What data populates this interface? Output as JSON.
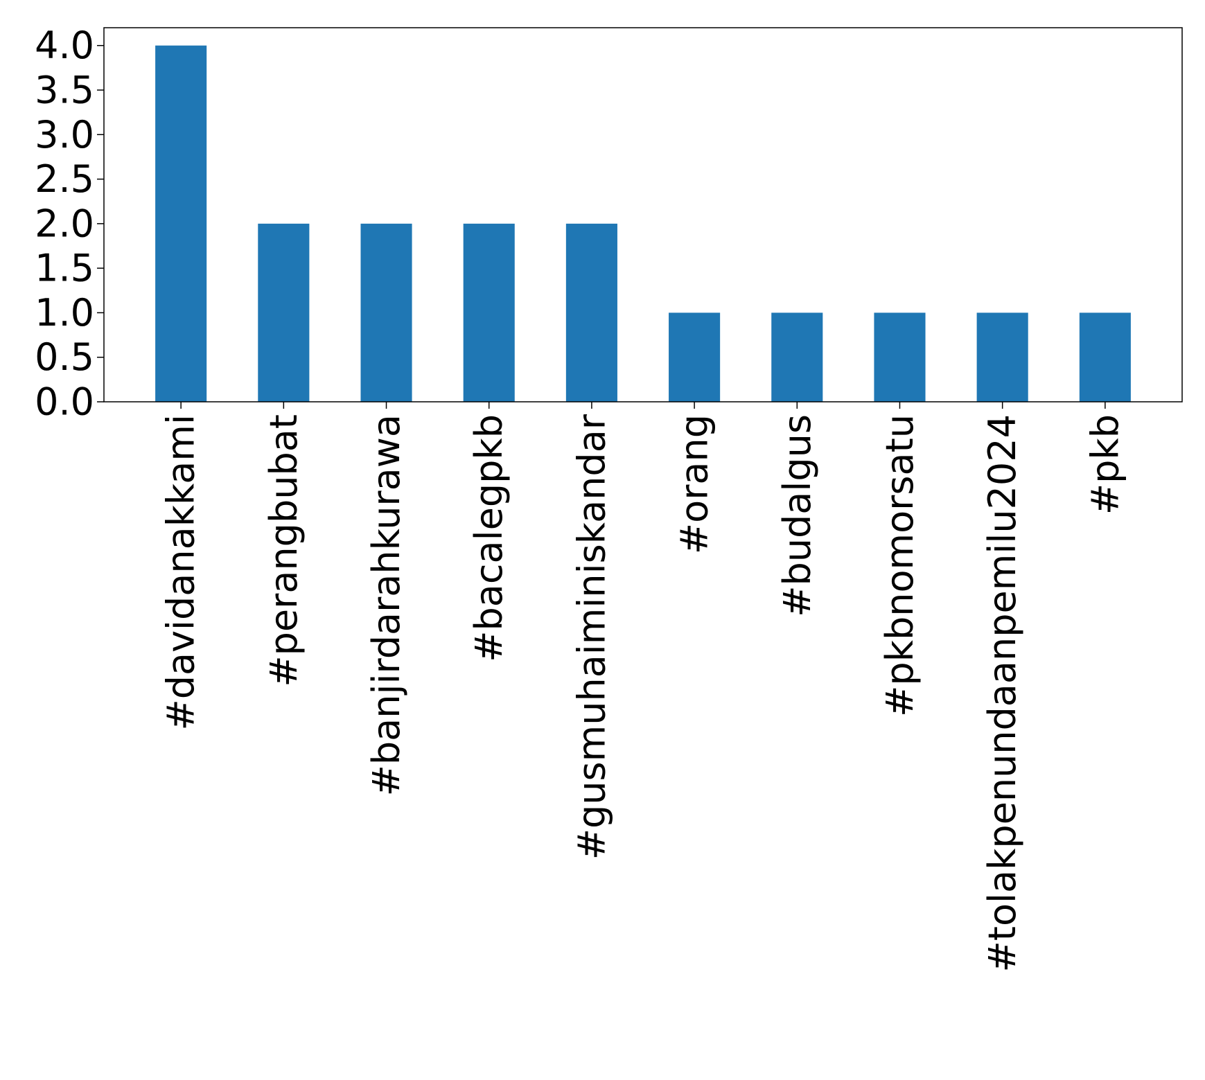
{
  "chart_data": {
    "type": "bar",
    "categories": [
      "#davidanakkami",
      "#perangbubat",
      "#banjirdarahkurawa",
      "#bacalegpkb",
      "#gusmuhaiminiskandar",
      "#orang",
      "#budalgus",
      "#pkbnomorsatu",
      "#tolakpenundaanpemilu2024",
      "#pkb"
    ],
    "values": [
      4,
      2,
      2,
      2,
      2,
      1,
      1,
      1,
      1,
      1
    ],
    "ylim": [
      0,
      4.2
    ],
    "y_ticks": [
      "0.0",
      "0.5",
      "1.0",
      "1.5",
      "2.0",
      "2.5",
      "3.0",
      "3.5",
      "4.0"
    ],
    "bar_color": "#1f77b4",
    "grid": false,
    "title": "",
    "xlabel": "",
    "ylabel": ""
  }
}
